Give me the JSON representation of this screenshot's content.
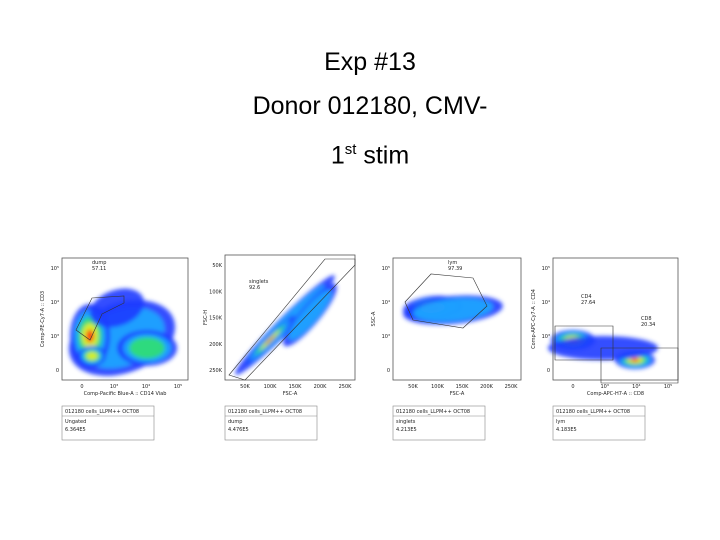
{
  "title": {
    "line1": "Exp #13",
    "line2": "Donor 012180, CMV-",
    "line3": {
      "number": "1",
      "sup": "st",
      "text": " stim"
    }
  },
  "plots": [
    {
      "ylabel": "Comp-PE-Cy7-A :: CD3",
      "xlabel": "Comp-Pacific Blue-A :: CD14 Viab",
      "yticks": [
        "0",
        "10³",
        "10⁴",
        "10⁵"
      ],
      "xticks": [
        "0",
        "10³",
        "10⁴",
        "10⁵"
      ],
      "gates": [
        {
          "label": "dump",
          "value": "57.11"
        }
      ],
      "info": [
        "012180 cells_LLPM++ OCT08",
        "Ungated",
        "6.364E5"
      ]
    },
    {
      "ylabel": "FSC-H",
      "xlabel": "FSC-A",
      "yticks": [
        "250K",
        "200K",
        "150K",
        "100K",
        "50K"
      ],
      "xticks": [
        "50K",
        "100K",
        "150K",
        "200K",
        "250K"
      ],
      "gates": [
        {
          "label": "singlets",
          "value": "92.6"
        }
      ],
      "info": [
        "012180 cells_LLPM++ OCT08",
        "dump",
        "4.476E5"
      ]
    },
    {
      "ylabel": "SSC-A",
      "xlabel": "FSC-A",
      "yticks": [
        "0",
        "10³",
        "10⁴",
        "10⁵"
      ],
      "xticks": [
        "50K",
        "100K",
        "150K",
        "200K",
        "250K"
      ],
      "gates": [
        {
          "label": "lym",
          "value": "97.39"
        }
      ],
      "info": [
        "012180 cells_LLPM++ OCT08",
        "singlets",
        "4.213E5"
      ]
    },
    {
      "ylabel": "Comp-APC-Cy7-A :: CD4",
      "xlabel": "Comp-APC-H7-A :: CD8",
      "yticks": [
        "0",
        "10³",
        "10⁴",
        "10⁵"
      ],
      "xticks": [
        "0",
        "10³",
        "10⁴",
        "10⁵"
      ],
      "gates": [
        {
          "label": "CD4",
          "value": "27.64"
        },
        {
          "label": "CD8",
          "value": "20.34"
        }
      ],
      "info": [
        "012180 cells_LLPM++ OCT08",
        "lym",
        "4.183E5"
      ]
    }
  ]
}
